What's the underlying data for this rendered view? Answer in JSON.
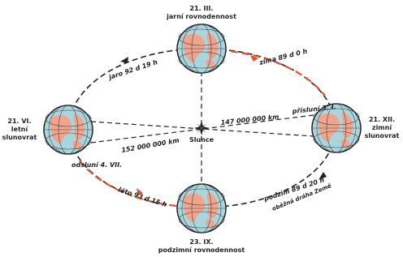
{
  "nodes": [
    {
      "date": "21. III.",
      "label": "jarní rovnodennost"
    },
    {
      "date": "21. VI.",
      "label": "letní slunovrat"
    },
    {
      "date": "21. XII.",
      "label": "zimní slunovrat"
    },
    {
      "date": "23. IX.",
      "label": "podzimní rovnodennost"
    }
  ],
  "seasons": {
    "spring": "jaro 92 d 19 h",
    "winter": "zima 89 d 0 h",
    "summer": "léto 93 d 15 h",
    "autumn": "podzim 89 d 20 h"
  },
  "orbit_label": "oběžná dráha Země",
  "sun": "Slunce",
  "perihelion": {
    "distance": "147 000 000 km",
    "label": "přísluní 3. I."
  },
  "aphelion": {
    "distance": "152 000 000 km",
    "label": "odsluní 4. VII."
  }
}
